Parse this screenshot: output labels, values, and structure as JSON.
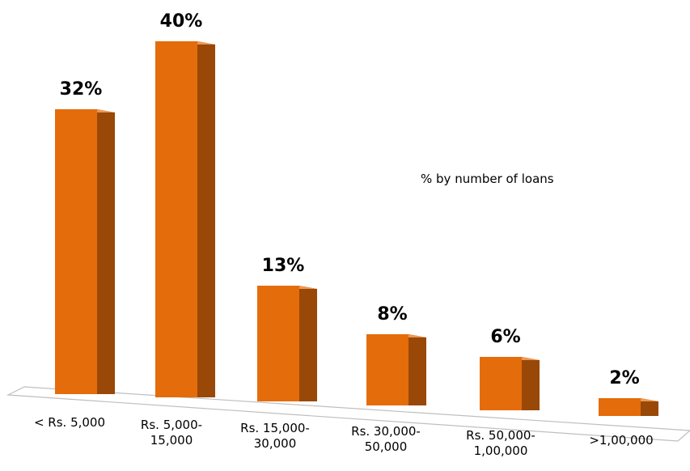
{
  "chart_data": {
    "type": "bar3d",
    "annotation": "% by number of loans",
    "categories": [
      "< Rs. 5,000",
      "Rs. 5,000-15,000",
      "Rs. 15,000-30,000",
      "Rs. 30,000-50,000",
      "Rs. 50,000-1,00,000",
      ">1,00,000"
    ],
    "values": [
      32,
      40,
      13,
      8,
      6,
      2
    ],
    "value_labels": [
      "32%",
      "40%",
      "13%",
      "8%",
      "6%",
      "2%"
    ],
    "color": "#e46c0a"
  }
}
